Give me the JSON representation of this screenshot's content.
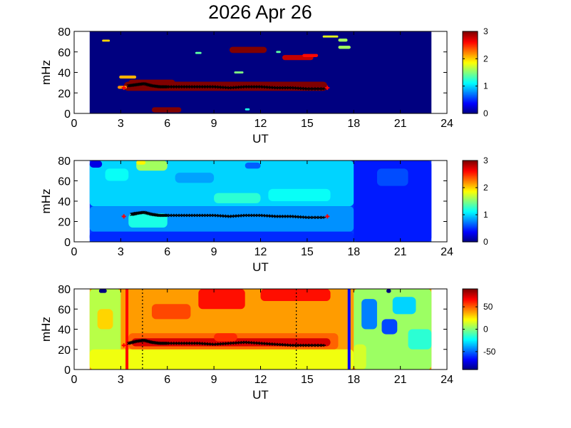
{
  "figure": {
    "title": "2026 Apr 26"
  },
  "colors": {
    "dark_red": "#800000",
    "red": "#ff0000",
    "yellow": "#ffff00",
    "cyan": "#00ffff",
    "blue": "#0000ff",
    "dark_blue": "#00008f",
    "ridge": "#000000",
    "marker": "#ff0000",
    "start_line": "#ff0000",
    "end_line": "#0000ff"
  },
  "chart_data": [
    {
      "type": "heatmap",
      "xlabel": "UT",
      "ylabel": "mHz",
      "xlim": [
        0,
        24
      ],
      "ylim": [
        0,
        80
      ],
      "xticks": [
        0,
        3,
        6,
        9,
        12,
        15,
        18,
        21,
        24
      ],
      "yticks": [
        0,
        20,
        40,
        60,
        80
      ],
      "data_range_x": [
        1,
        23
      ],
      "colorbar": {
        "range": [
          0,
          3
        ],
        "ticks": [
          0,
          1,
          2,
          3
        ]
      },
      "background_value": 0,
      "regions": [
        {
          "x": [
            3.2,
            16.3
          ],
          "y": [
            22,
            31
          ],
          "value": 3.0
        },
        {
          "x": [
            3.5,
            6.5
          ],
          "y": [
            27,
            33
          ],
          "value": 3.0
        },
        {
          "x": [
            5.0,
            6.9
          ],
          "y": [
            1,
            6
          ],
          "value": 3.0
        },
        {
          "x": [
            10.0,
            12.4
          ],
          "y": [
            59,
            65
          ],
          "value": 3.0
        },
        {
          "x": [
            13.4,
            15.4
          ],
          "y": [
            52,
            57
          ],
          "value": 2.8
        },
        {
          "x": [
            14.7,
            15.7
          ],
          "y": [
            55,
            58
          ],
          "value": 2.6
        },
        {
          "x": [
            17.0,
            17.8
          ],
          "y": [
            63,
            66
          ],
          "value": 1.6
        },
        {
          "x": [
            17.0,
            17.6
          ],
          "y": [
            70,
            73
          ],
          "value": 1.6
        },
        {
          "x": [
            1.8,
            2.3
          ],
          "y": [
            70,
            72
          ],
          "value": 2.0
        },
        {
          "x": [
            7.8,
            8.2
          ],
          "y": [
            58,
            60
          ],
          "value": 1.4
        },
        {
          "x": [
            10.3,
            10.9
          ],
          "y": [
            39,
            41
          ],
          "value": 1.5
        },
        {
          "x": [
            2.9,
            4.0
          ],
          "y": [
            34,
            37
          ],
          "value": 2.1
        },
        {
          "x": [
            2.8,
            3.4
          ],
          "y": [
            24,
            27
          ],
          "value": 2.2
        },
        {
          "x": [
            13.0,
            13.3
          ],
          "y": [
            59,
            61
          ],
          "value": 1.4
        },
        {
          "x": [
            16.0,
            17.0
          ],
          "y": [
            74,
            76
          ],
          "value": 1.8
        },
        {
          "x": [
            11.0,
            11.3
          ],
          "y": [
            3,
            5
          ],
          "value": 1.2
        }
      ],
      "ridge": {
        "x": [
          3.5,
          4.0,
          4.5,
          5.0,
          5.5,
          6.0,
          7,
          8,
          9,
          10,
          11,
          12,
          13,
          14,
          15,
          16.2
        ],
        "y": [
          27,
          28,
          29,
          27,
          26,
          26,
          26,
          26,
          26,
          25,
          26,
          26,
          25,
          25,
          24,
          24
        ]
      },
      "markers": {
        "x": [
          3.2,
          16.3
        ],
        "y": [
          25,
          25
        ]
      }
    },
    {
      "type": "heatmap",
      "xlabel": "UT",
      "ylabel": "mHz",
      "xlim": [
        0,
        24
      ],
      "ylim": [
        0,
        80
      ],
      "xticks": [
        0,
        3,
        6,
        9,
        12,
        15,
        18,
        21,
        24
      ],
      "yticks": [
        0,
        20,
        40,
        60,
        80
      ],
      "data_range_x": [
        1,
        23
      ],
      "colorbar": {
        "range": [
          0,
          3
        ],
        "ticks": [
          0,
          1,
          2,
          3
        ]
      },
      "background_value": 0.55,
      "regions": [
        {
          "x": [
            1,
            18
          ],
          "y": [
            35,
            80
          ],
          "value": 1.0
        },
        {
          "x": [
            1,
            18
          ],
          "y": [
            10,
            35
          ],
          "value": 0.8
        },
        {
          "x": [
            3.5,
            6.0
          ],
          "y": [
            14,
            28
          ],
          "value": 1.2
        },
        {
          "x": [
            4.0,
            6.0
          ],
          "y": [
            70,
            80
          ],
          "value": 1.6
        },
        {
          "x": [
            2.0,
            3.5
          ],
          "y": [
            60,
            72
          ],
          "value": 1.15
        },
        {
          "x": [
            9.0,
            12.0
          ],
          "y": [
            38,
            48
          ],
          "value": 1.25
        },
        {
          "x": [
            12.5,
            16.5
          ],
          "y": [
            40,
            52
          ],
          "value": 1.15
        },
        {
          "x": [
            6.5,
            9.0
          ],
          "y": [
            58,
            68
          ],
          "value": 0.85
        },
        {
          "x": [
            1,
            18
          ],
          "y": [
            0,
            10
          ],
          "value": 0.5
        },
        {
          "x": [
            18,
            23
          ],
          "y": [
            0,
            80
          ],
          "value": 0.45
        },
        {
          "x": [
            19.5,
            21.5
          ],
          "y": [
            55,
            72
          ],
          "value": 0.6
        },
        {
          "x": [
            1.0,
            1.8
          ],
          "y": [
            73,
            80
          ],
          "value": 0.3
        },
        {
          "x": [
            11.0,
            12.0
          ],
          "y": [
            72,
            78
          ],
          "value": 0.65
        },
        {
          "x": [
            4.0,
            4.6
          ],
          "y": [
            76,
            80
          ],
          "value": 1.9
        }
      ],
      "ridge": {
        "x": [
          3.7,
          4.0,
          4.5,
          5.0,
          5.5,
          6.0,
          7,
          8,
          9,
          10,
          11,
          12,
          13,
          14,
          15,
          16.2
        ],
        "y": [
          27,
          28,
          29,
          27,
          26,
          26,
          26,
          26,
          26,
          25,
          26,
          26,
          25,
          25,
          24,
          24
        ]
      },
      "markers": {
        "x": [
          3.2,
          16.3
        ],
        "y": [
          25,
          25
        ]
      }
    },
    {
      "type": "heatmap",
      "xlabel": "UT",
      "ylabel": "mHz",
      "xlim": [
        0,
        24
      ],
      "ylim": [
        0,
        80
      ],
      "xticks": [
        0,
        3,
        6,
        9,
        12,
        15,
        18,
        21,
        24
      ],
      "yticks": [
        0,
        20,
        40,
        60,
        80
      ],
      "data_range_x": [
        1,
        23
      ],
      "colorbar": {
        "range": [
          -90,
          90
        ],
        "ticks": [
          50,
          0,
          -50
        ]
      },
      "background_value": 40,
      "regions": [
        {
          "x": [
            1,
            3.0
          ],
          "y": [
            0,
            80
          ],
          "value": 10
        },
        {
          "x": [
            1,
            18
          ],
          "y": [
            0,
            20
          ],
          "value": 20
        },
        {
          "x": [
            3.5,
            17
          ],
          "y": [
            20,
            36
          ],
          "value": 50
        },
        {
          "x": [
            3.7,
            16.5
          ],
          "y": [
            23,
            31
          ],
          "value": 75
        },
        {
          "x": [
            8.0,
            11.0
          ],
          "y": [
            60,
            80
          ],
          "value": 65
        },
        {
          "x": [
            12.0,
            16.5
          ],
          "y": [
            68,
            80
          ],
          "value": 65
        },
        {
          "x": [
            5.0,
            7.5
          ],
          "y": [
            50,
            65
          ],
          "value": 55
        },
        {
          "x": [
            9.0,
            10.5
          ],
          "y": [
            28,
            36
          ],
          "value": 60
        },
        {
          "x": [
            18,
            23
          ],
          "y": [
            0,
            80
          ],
          "value": 5
        },
        {
          "x": [
            18.5,
            19.5
          ],
          "y": [
            40,
            70
          ],
          "value": -45
        },
        {
          "x": [
            19.8,
            20.8
          ],
          "y": [
            35,
            50
          ],
          "value": -55
        },
        {
          "x": [
            20.5,
            22.0
          ],
          "y": [
            55,
            72
          ],
          "value": -30
        },
        {
          "x": [
            21.5,
            23.0
          ],
          "y": [
            20,
            40
          ],
          "value": -15
        },
        {
          "x": [
            18.0,
            18.8
          ],
          "y": [
            0,
            25
          ],
          "value": 15
        },
        {
          "x": [
            1.5,
            2.5
          ],
          "y": [
            40,
            60
          ],
          "value": 30
        },
        {
          "x": [
            1.6,
            2.1
          ],
          "y": [
            76,
            80
          ],
          "value": -90
        },
        {
          "x": [
            20.1,
            20.4
          ],
          "y": [
            76,
            80
          ],
          "value": -90
        }
      ],
      "ridge": {
        "x": [
          3.5,
          4.0,
          4.5,
          5.0,
          5.5,
          6.0,
          7,
          8,
          9,
          10,
          11,
          12,
          13,
          14,
          15,
          16.2
        ],
        "y": [
          26,
          28,
          29,
          27,
          26,
          26,
          26,
          26,
          25,
          26,
          27,
          26,
          25,
          24,
          24,
          24
        ]
      },
      "markers": {
        "x": [
          3.2
        ],
        "y": [
          24
        ]
      },
      "vlines": [
        {
          "x": 3.4,
          "style": "solid",
          "color": "#ff0000"
        },
        {
          "x": 4.4,
          "style": "dotted",
          "color": "#000000"
        },
        {
          "x": 14.3,
          "style": "dotted",
          "color": "#000000"
        },
        {
          "x": 17.7,
          "style": "solid",
          "color": "#0000ff"
        }
      ]
    }
  ]
}
